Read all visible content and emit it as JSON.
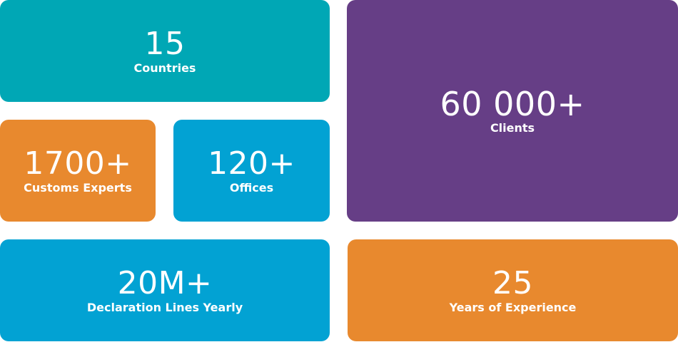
{
  "tiles": [
    {
      "value": "15",
      "label": "Countries"
    },
    {
      "value": "1700+",
      "label": "Customs Experts"
    },
    {
      "value": "120+",
      "label": "Offices"
    },
    {
      "value": "60 000+",
      "label": "Clients"
    },
    {
      "value": "20M+",
      "label": "Declaration Lines Yearly"
    },
    {
      "value": "25",
      "label": "Years of Experience"
    }
  ]
}
